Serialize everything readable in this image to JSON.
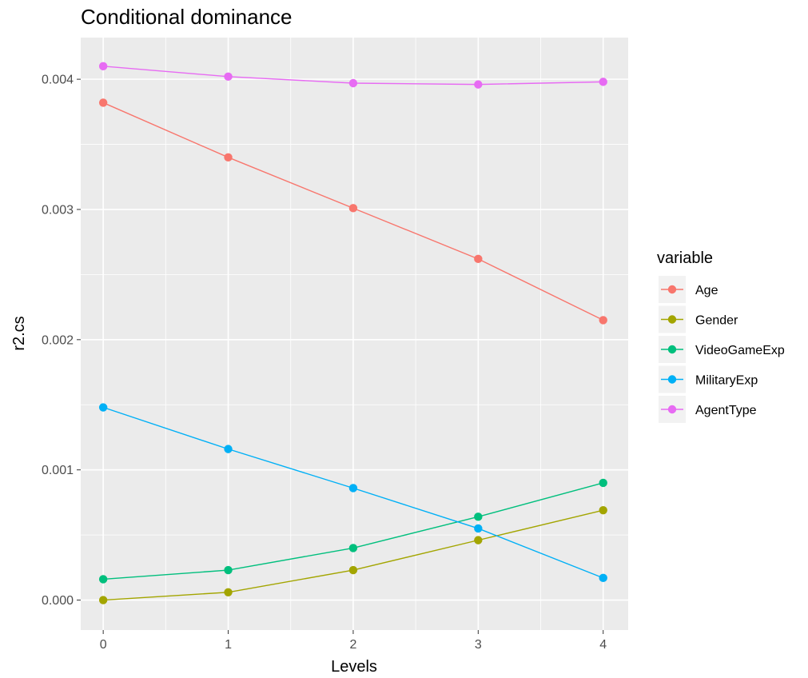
{
  "chart_data": {
    "type": "line",
    "title": "Conditional dominance",
    "xlabel": "Levels",
    "ylabel": "r2.cs",
    "x": [
      0,
      1,
      2,
      3,
      4
    ],
    "xlim": [
      -0.18,
      4.2
    ],
    "ylim": [
      -0.00023,
      0.00432
    ],
    "x_ticks": [
      "0",
      "1",
      "2",
      "3",
      "4"
    ],
    "y_ticks": [
      "0.000",
      "0.001",
      "0.002",
      "0.003",
      "0.004"
    ],
    "y_tick_values": [
      0,
      0.001,
      0.002,
      0.003,
      0.004
    ],
    "grid": true,
    "legend_position": "right",
    "legend_title": "variable",
    "series": [
      {
        "name": "Age",
        "color": "#F8766D",
        "values": [
          0.00382,
          0.0034,
          0.00301,
          0.00262,
          0.00215
        ]
      },
      {
        "name": "Gender",
        "color": "#A3A500",
        "values": [
          0.0,
          6e-05,
          0.00023,
          0.00046,
          0.00069
        ]
      },
      {
        "name": "VideoGameExp",
        "color": "#00BF7D",
        "values": [
          0.00016,
          0.00023,
          0.0004,
          0.00064,
          0.0009
        ]
      },
      {
        "name": "MilitaryExp",
        "color": "#00B0F6",
        "values": [
          0.00148,
          0.00116,
          0.00086,
          0.00055,
          0.00017
        ]
      },
      {
        "name": "AgentType",
        "color": "#E76BF3",
        "values": [
          0.0041,
          0.00402,
          0.00397,
          0.00396,
          0.00398
        ]
      }
    ]
  }
}
